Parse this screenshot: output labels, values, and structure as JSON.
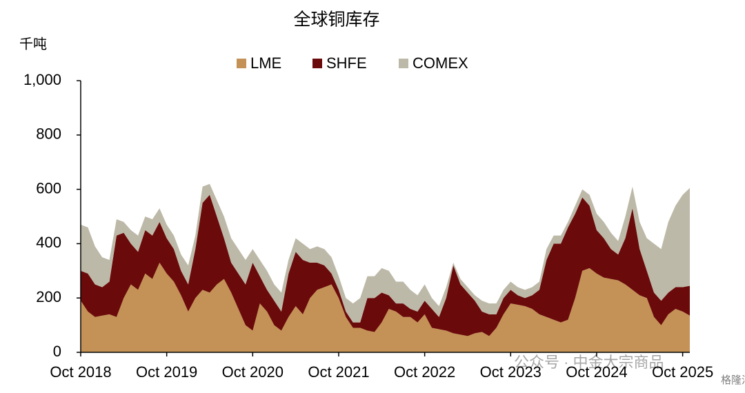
{
  "chart_data": {
    "type": "stacked_area",
    "title": "全球铜库存",
    "y_label": "千吨",
    "watermark": "公众号 · 中金大宗商品",
    "watermark2": "格隆汇",
    "categories": [
      "Oct 2018",
      null,
      null,
      null,
      null,
      null,
      null,
      null,
      null,
      null,
      null,
      null,
      "Oct 2019",
      null,
      null,
      null,
      null,
      null,
      null,
      null,
      null,
      null,
      null,
      null,
      "Oct 2020",
      null,
      null,
      null,
      null,
      null,
      null,
      null,
      null,
      null,
      null,
      null,
      "Oct 2021",
      null,
      null,
      null,
      null,
      null,
      null,
      null,
      null,
      null,
      null,
      null,
      "Oct 2022",
      null,
      null,
      null,
      null,
      null,
      null,
      null,
      null,
      null,
      null,
      null,
      "Oct 2023",
      null,
      null,
      null,
      null,
      null,
      null,
      null,
      null,
      null,
      null,
      null,
      "Oct 2024",
      null,
      null,
      null,
      null,
      null,
      null,
      null,
      null,
      null,
      null,
      null,
      "Oct 2025",
      null
    ],
    "series": [
      {
        "name": "LME",
        "color": "#c49256",
        "values": [
          190,
          150,
          130,
          135,
          140,
          130,
          200,
          250,
          230,
          290,
          270,
          330,
          290,
          260,
          210,
          150,
          200,
          230,
          220,
          250,
          270,
          220,
          160,
          100,
          80,
          180,
          150,
          100,
          80,
          130,
          170,
          140,
          200,
          230,
          240,
          250,
          200,
          130,
          90,
          90,
          80,
          75,
          110,
          160,
          150,
          130,
          130,
          110,
          140,
          90,
          85,
          80,
          70,
          65,
          60,
          70,
          75,
          60,
          90,
          140,
          180,
          175,
          170,
          160,
          140,
          130,
          120,
          110,
          120,
          200,
          300,
          310,
          290,
          275,
          270,
          265,
          250,
          230,
          210,
          200,
          130,
          100,
          140,
          160,
          150,
          135
        ]
      },
      {
        "name": "SHFE",
        "color": "#6b0a0a",
        "values": [
          110,
          140,
          120,
          105,
          120,
          300,
          240,
          150,
          140,
          160,
          160,
          150,
          130,
          120,
          90,
          100,
          180,
          320,
          360,
          250,
          150,
          110,
          130,
          150,
          250,
          100,
          80,
          90,
          70,
          160,
          200,
          200,
          130,
          100,
          80,
          40,
          30,
          20,
          20,
          20,
          120,
          125,
          110,
          50,
          30,
          50,
          30,
          40,
          50,
          70,
          45,
          120,
          250,
          185,
          160,
          120,
          75,
          80,
          50,
          60,
          50,
          35,
          30,
          50,
          90,
          210,
          280,
          290,
          340,
          310,
          270,
          230,
          160,
          145,
          110,
          95,
          170,
          300,
          170,
          100,
          90,
          90,
          80,
          80,
          90,
          110
        ]
      },
      {
        "name": "COMEX",
        "color": "#bdb9a8",
        "values": [
          170,
          170,
          140,
          110,
          80,
          60,
          40,
          50,
          60,
          50,
          60,
          50,
          50,
          50,
          60,
          70,
          50,
          60,
          40,
          60,
          80,
          90,
          90,
          90,
          50,
          60,
          70,
          60,
          70,
          50,
          50,
          60,
          50,
          60,
          60,
          60,
          50,
          50,
          70,
          90,
          80,
          80,
          90,
          90,
          80,
          80,
          70,
          60,
          60,
          40,
          40,
          40,
          10,
          20,
          20,
          20,
          40,
          40,
          40,
          30,
          30,
          30,
          30,
          30,
          30,
          40,
          30,
          30,
          20,
          30,
          30,
          40,
          60,
          60,
          60,
          50,
          80,
          80,
          100,
          120,
          180,
          190,
          260,
          300,
          340,
          360
        ]
      }
    ],
    "ylim": [
      0,
      1000
    ],
    "yticks": [
      0,
      200,
      400,
      600,
      800,
      {
        "value": 1000,
        "label": "1,000"
      }
    ],
    "legend": "top",
    "grid": false
  }
}
